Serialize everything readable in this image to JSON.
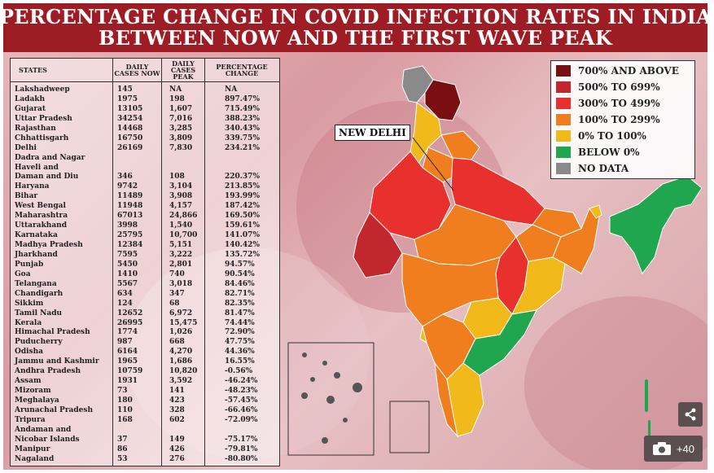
{
  "title": {
    "line1": "PERCENTAGE CHANGE IN COVID INFECTION RATES IN INDIA",
    "line2": "BETWEEN NOW AND THE FIRST WAVE PEAK"
  },
  "table": {
    "headers": {
      "states": "STATES",
      "now": "DAILY CASES NOW",
      "peak": "DAILY CASES PEAK",
      "change": "PERCENTAGE CHANGE"
    },
    "rows": [
      {
        "state": "Lakshadweep",
        "now": "145",
        "peak": "NA",
        "change": "NA"
      },
      {
        "state": "Ladakh",
        "now": "1975",
        "peak": "198",
        "change": "897.47%"
      },
      {
        "state": "Gujarat",
        "now": "13105",
        "peak": "1,607",
        "change": "715.49%"
      },
      {
        "state": "Uttar Pradesh",
        "now": "34254",
        "peak": "7,016",
        "change": "388.23%"
      },
      {
        "state": "Rajasthan",
        "now": "14468",
        "peak": "3,285",
        "change": "340.43%"
      },
      {
        "state": "Chhattisgarh",
        "now": "16750",
        "peak": "3,809",
        "change": "339.75%"
      },
      {
        "state": "Delhi",
        "now": "26169",
        "peak": "7,830",
        "change": "234.21%"
      },
      {
        "state": "Dadra and Nagar",
        "now": "",
        "peak": "",
        "change": ""
      },
      {
        "state": "Haveli and",
        "now": "",
        "peak": "",
        "change": ""
      },
      {
        "state": "Daman and Diu",
        "now": "346",
        "peak": "108",
        "change": "220.37%"
      },
      {
        "state": "Haryana",
        "now": "9742",
        "peak": "3,104",
        "change": "213.85%"
      },
      {
        "state": "Bihar",
        "now": "11489",
        "peak": "3,908",
        "change": "193.99%"
      },
      {
        "state": "West Bengal",
        "now": "11948",
        "peak": "4,157",
        "change": "187.42%"
      },
      {
        "state": "Maharashtra",
        "now": "67013",
        "peak": "24,866",
        "change": "169.50%"
      },
      {
        "state": "Uttarakhand",
        "now": "3998",
        "peak": "1,540",
        "change": "159.61%"
      },
      {
        "state": "Karnataka",
        "now": "25795",
        "peak": "10,700",
        "change": "141.07%"
      },
      {
        "state": "Madhya Pradesh",
        "now": "12384",
        "peak": "5,151",
        "change": "140.42%"
      },
      {
        "state": "Jharkhand",
        "now": "7595",
        "peak": "3,222",
        "change": "135.72%"
      },
      {
        "state": "Punjab",
        "now": "5450",
        "peak": "2,801",
        "change": "94.57%"
      },
      {
        "state": "Goa",
        "now": "1410",
        "peak": "740",
        "change": "90.54%"
      },
      {
        "state": "Telangana",
        "now": "5567",
        "peak": "3,018",
        "change": "84.46%"
      },
      {
        "state": "Chandigarh",
        "now": "634",
        "peak": "347",
        "change": "82.71%"
      },
      {
        "state": "Sikkim",
        "now": "124",
        "peak": "68",
        "change": "82.35%"
      },
      {
        "state": "Tamil Nadu",
        "now": "12652",
        "peak": "6,972",
        "change": "81.47%"
      },
      {
        "state": "Kerala",
        "now": "26995",
        "peak": "15,475",
        "change": "74.44%"
      },
      {
        "state": "Himachal Pradesh",
        "now": "1774",
        "peak": "1,026",
        "change": "72.90%"
      },
      {
        "state": "Puducherry",
        "now": "987",
        "peak": "668",
        "change": "47.75%"
      },
      {
        "state": "Odisha",
        "now": "6164",
        "peak": "4,270",
        "change": "44.36%"
      },
      {
        "state": "Jammu and Kashmir",
        "now": "1965",
        "peak": "1,686",
        "change": "16.55%"
      },
      {
        "state": "Andhra Pradesh",
        "now": "10759",
        "peak": "10,820",
        "change": "-0.56%"
      },
      {
        "state": "Assam",
        "now": "1931",
        "peak": "3,592",
        "change": "-46.24%"
      },
      {
        "state": "Mizoram",
        "now": "73",
        "peak": "141",
        "change": "-48.23%"
      },
      {
        "state": "Meghalaya",
        "now": "180",
        "peak": "423",
        "change": "-57.45%"
      },
      {
        "state": "Arunachal Pradesh",
        "now": "110",
        "peak": "328",
        "change": "-66.46%"
      },
      {
        "state": "Tripura",
        "now": "168",
        "peak": "602",
        "change": "-72.09%"
      },
      {
        "state": "Andaman and",
        "now": "",
        "peak": "",
        "change": ""
      },
      {
        "state": "Nicobar Islands",
        "now": "37",
        "peak": "149",
        "change": "-75.17%"
      },
      {
        "state": "Manipur",
        "now": "86",
        "peak": "426",
        "change": "-79.81%"
      },
      {
        "state": "Nagaland",
        "now": "53",
        "peak": "276",
        "change": "-80.80%"
      }
    ]
  },
  "legend": {
    "items": [
      {
        "label": "700% AND ABOVE",
        "color": "#7a0f12"
      },
      {
        "label": "500% TO 699%",
        "color": "#c1272d"
      },
      {
        "label": "300% TO 499%",
        "color": "#e8302c"
      },
      {
        "label": "100% TO 299%",
        "color": "#f07e1e"
      },
      {
        "label": "0% TO 100%",
        "color": "#f2b91b"
      },
      {
        "label": "BELOW 0%",
        "color": "#21a650"
      },
      {
        "label": "NO DATA",
        "color": "#8a8a8a"
      }
    ]
  },
  "map": {
    "callout": "NEW DELHI",
    "region_colors": {
      "ladakh": "#7a0f12",
      "gujarat": "#c1272d",
      "red": "#e8302c",
      "orange": "#f07e1e",
      "yellow": "#f2b91b",
      "green": "#21a650",
      "nodata": "#8a8a8a"
    }
  },
  "controls": {
    "photo_count": "+40"
  }
}
